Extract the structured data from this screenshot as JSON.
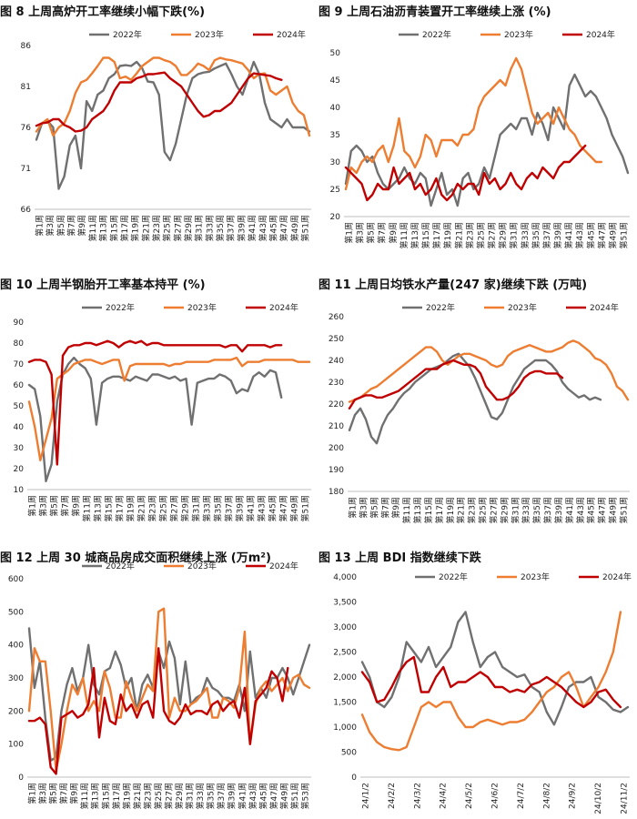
{
  "series_colors": {
    "2022": "#707070",
    "2023": "#ED7D31",
    "2024": "#C00000"
  },
  "week_labels": [
    "第1周",
    "第3周",
    "第5周",
    "第7周",
    "第9周",
    "第11周",
    "第13周",
    "第15周",
    "第17周",
    "第19周",
    "第21周",
    "第23周",
    "第25周",
    "第27周",
    "第29周",
    "第31周",
    "第33周",
    "第35周",
    "第37周",
    "第39周",
    "第41周",
    "第43周",
    "第45周",
    "第47周",
    "第49周",
    "第51周"
  ],
  "week_labels_53": [
    "第1周",
    "第3周",
    "第5周",
    "第7周",
    "第9周",
    "第11周",
    "第13周",
    "第15周",
    "第17周",
    "第19周",
    "第21周",
    "第23周",
    "第25周",
    "第27周",
    "第29周",
    "第31周",
    "第33周",
    "第35周",
    "第37周",
    "第39周",
    "第41周",
    "第43周",
    "第45周",
    "第47周",
    "第49周",
    "第51周",
    "第53周"
  ],
  "chart_data": [
    {
      "id": "c8",
      "type": "line",
      "title": "图 8  上周高炉开工率继续小幅下跌(%)",
      "ylim": [
        66,
        86
      ],
      "yticks": [
        "66",
        "71",
        "76",
        "81",
        "86"
      ],
      "ytick_values": [
        66,
        71,
        76,
        81,
        86
      ],
      "xlabels_key": "week_labels",
      "legend_names": [
        "2022年",
        "2023年",
        "2024年"
      ],
      "series": [
        {
          "name": "2022年",
          "values": [
            74.5,
            76.5,
            76.8,
            76,
            68.5,
            70,
            73.8,
            75,
            71,
            79.2,
            78,
            80,
            80.5,
            82,
            82.5,
            83.5,
            83.6,
            83.5,
            84,
            83.2,
            81.6,
            81.5,
            80,
            73,
            72,
            74,
            77,
            80,
            82,
            82.5,
            82.7,
            82.8,
            83.2,
            83.5,
            83.8,
            82.5,
            81,
            80,
            82,
            84,
            82.5,
            79,
            77,
            76.5,
            76,
            77,
            76,
            76,
            76,
            75.5
          ]
        },
        {
          "name": "2023年",
          "values": [
            75.5,
            76.5,
            77,
            75,
            76,
            76.5,
            78,
            80.2,
            81.5,
            81.8,
            82.6,
            83.5,
            84.5,
            84.5,
            84,
            82,
            82.2,
            81.8,
            82.6,
            83.5,
            84,
            84.5,
            84.5,
            84.2,
            84,
            83.5,
            82.4,
            82.4,
            83,
            83.8,
            83.5,
            83,
            84.2,
            84.5,
            84.3,
            84.2,
            84,
            83.8,
            83,
            82,
            82.5,
            82.6,
            80.5,
            80,
            80.5,
            81,
            79,
            78,
            77.5,
            75
          ]
        },
        {
          "name": "2024年",
          "values": [
            76.2,
            76.5,
            76.6,
            77,
            77,
            76.3,
            76,
            75.5,
            75.6,
            76,
            77,
            77.5,
            78,
            79,
            80.5,
            81.5,
            81.5,
            81.5,
            82,
            82.2,
            82.5,
            82.5,
            82.6,
            82.7,
            82,
            81.5,
            81,
            80,
            79,
            78,
            77.3,
            77.5,
            78,
            78,
            78.5,
            79,
            80,
            81,
            82,
            82.6,
            82.5,
            82.4,
            82.3,
            82,
            81.8
          ]
        }
      ]
    },
    {
      "id": "c9",
      "type": "line",
      "title": "图 9  上周石油沥青装置开工率继续上涨 (%)",
      "ylim": [
        20,
        50
      ],
      "yticks": [
        "20",
        "25",
        "30",
        "35",
        "40",
        "45",
        "50"
      ],
      "ytick_values": [
        20,
        25,
        30,
        35,
        40,
        45,
        50
      ],
      "xlabels_key": "week_labels",
      "legend_names": [
        "2022年",
        "2023年",
        "2024年"
      ],
      "series": [
        {
          "name": "2022年",
          "values": [
            26,
            32,
            33,
            32,
            30,
            31,
            28,
            26,
            25,
            26,
            27,
            29,
            27,
            26,
            28,
            27,
            22,
            25,
            28,
            24,
            25,
            22,
            27,
            28,
            25,
            26,
            29,
            27,
            31,
            35,
            36,
            37,
            36,
            38,
            38,
            35,
            39,
            37,
            34,
            40,
            38,
            36,
            44,
            46,
            44,
            42,
            43,
            42,
            40,
            38,
            35,
            33,
            31,
            28
          ]
        },
        {
          "name": "2023年",
          "values": [
            25,
            29,
            28,
            30,
            31,
            30,
            32,
            33,
            30,
            33,
            38,
            32,
            31,
            29,
            31,
            35,
            34,
            31,
            34,
            34,
            34,
            33,
            35,
            35,
            36,
            40,
            42,
            43,
            44,
            45,
            44,
            47,
            49,
            47,
            43,
            39,
            37,
            38,
            39,
            37,
            40,
            38,
            36,
            35,
            33,
            32,
            31,
            30,
            30
          ]
        },
        {
          "name": "2024年",
          "values": [
            29,
            28,
            27,
            26,
            23,
            24,
            26,
            25,
            25,
            29,
            26,
            27,
            28,
            25,
            26,
            24,
            25,
            27,
            24,
            23,
            24,
            26,
            25,
            26,
            26,
            24,
            28,
            26,
            27,
            25,
            26,
            28,
            26,
            25,
            27,
            28,
            27,
            29,
            28,
            27,
            29,
            30,
            30,
            31,
            32,
            33
          ]
        }
      ]
    },
    {
      "id": "c10",
      "type": "line",
      "title": "图 10   上周半钢胎开工率基本持平 (%)",
      "ylim": [
        10,
        90
      ],
      "yticks": [
        "10",
        "20",
        "30",
        "40",
        "50",
        "60",
        "70",
        "80",
        "90"
      ],
      "ytick_values": [
        10,
        20,
        30,
        40,
        50,
        60,
        70,
        80,
        90
      ],
      "xlabels_key": "week_labels",
      "legend_names": [
        "2022年",
        "2023年",
        "2024年"
      ],
      "series": [
        {
          "name": "2022年",
          "values": [
            60,
            58,
            45,
            14,
            22,
            52,
            65,
            70,
            73,
            70,
            68,
            63,
            41,
            61,
            63,
            64,
            64,
            63,
            62,
            64,
            63,
            62,
            65,
            65,
            64,
            63,
            64,
            62,
            63,
            41,
            61,
            62,
            63,
            63,
            65,
            64,
            62,
            56,
            58,
            57,
            64,
            66,
            64,
            67,
            66,
            54
          ]
        },
        {
          "name": "2023年",
          "values": [
            52,
            40,
            24,
            34,
            44,
            63,
            65,
            67,
            70,
            71,
            72,
            72,
            71,
            70,
            71,
            72,
            72,
            62,
            69,
            70,
            70,
            70,
            70,
            70,
            70,
            69,
            70,
            70,
            71,
            71,
            71,
            71,
            71,
            72,
            72,
            72,
            72,
            73,
            69,
            71,
            71,
            71,
            72,
            72,
            72,
            72,
            72,
            72,
            71,
            71,
            71
          ]
        },
        {
          "name": "2024年",
          "values": [
            71,
            72,
            72,
            71,
            65,
            22,
            74,
            78,
            79,
            79,
            80,
            80,
            79,
            80,
            81,
            80,
            78,
            80,
            81,
            80,
            81,
            79,
            80,
            80,
            79,
            79,
            79,
            79,
            79,
            79,
            79,
            79,
            79,
            79,
            79,
            78,
            79,
            79,
            76,
            79,
            79,
            79,
            79,
            78,
            79,
            79
          ]
        }
      ]
    },
    {
      "id": "c11",
      "type": "line",
      "title": "图 11  上周日均铁水产量(247 家)继续下跌 (万吨)",
      "ylim": [
        180,
        260
      ],
      "yticks": [
        "180",
        "190",
        "200",
        "210",
        "220",
        "230",
        "240",
        "250",
        "260"
      ],
      "ytick_values": [
        180,
        190,
        200,
        210,
        220,
        230,
        240,
        250,
        260
      ],
      "xlabels_key": "week_labels",
      "legend_names": [
        "2022年",
        "2023年",
        "2024年"
      ],
      "series": [
        {
          "name": "2022年",
          "values": [
            208,
            215,
            218,
            213,
            205,
            202,
            210,
            215,
            218,
            222,
            225,
            227,
            230,
            232,
            234,
            236,
            237,
            238,
            240,
            242,
            243,
            240,
            237,
            232,
            226,
            220,
            214,
            213,
            216,
            222,
            228,
            232,
            236,
            238,
            240,
            240,
            240,
            238,
            235,
            230,
            227,
            225,
            223,
            224,
            222,
            223,
            222
          ]
        },
        {
          "name": "2023年",
          "values": [
            221,
            222,
            223,
            225,
            227,
            228,
            230,
            232,
            234,
            236,
            238,
            240,
            242,
            244,
            246,
            246,
            244,
            240,
            238,
            240,
            242,
            243,
            243,
            242,
            241,
            240,
            238,
            237,
            238,
            242,
            244,
            245,
            246,
            247,
            246,
            245,
            244,
            244,
            245,
            246,
            248,
            249,
            248,
            246,
            244,
            241,
            240,
            238,
            234,
            228,
            226,
            222
          ]
        },
        {
          "name": "2024年",
          "values": [
            218,
            222,
            223,
            224,
            224,
            223,
            223,
            224,
            225,
            226,
            228,
            230,
            232,
            234,
            236,
            236,
            236,
            238,
            239,
            240,
            239,
            238,
            238,
            237,
            234,
            228,
            225,
            222,
            222,
            223,
            225,
            228,
            232,
            234,
            235,
            235,
            234,
            234,
            234,
            232
          ]
        }
      ]
    },
    {
      "id": "c12",
      "type": "line",
      "title": "图 12  上周 30 城商品房成交面积继续上涨 (万m²)",
      "ylim": [
        0,
        600
      ],
      "yticks": [
        "0",
        "100",
        "200",
        "300",
        "400",
        "500",
        "600"
      ],
      "ytick_values": [
        0,
        100,
        200,
        300,
        400,
        500,
        600
      ],
      "xlabels_key": "week_labels_53",
      "legend_names": [
        "2022年",
        "2023年",
        "2024年"
      ],
      "series": [
        {
          "name": "2022年",
          "values": [
            450,
            270,
            350,
            180,
            50,
            60,
            200,
            280,
            330,
            260,
            300,
            400,
            280,
            250,
            320,
            330,
            380,
            340,
            270,
            300,
            200,
            280,
            310,
            270,
            380,
            330,
            410,
            360,
            220,
            350,
            220,
            240,
            250,
            300,
            270,
            260,
            240,
            240,
            230,
            280,
            200,
            380,
            240,
            270,
            240,
            300,
            300,
            330,
            300,
            250,
            300,
            350,
            400
          ]
        },
        {
          "name": "2023年",
          "values": [
            200,
            390,
            350,
            350,
            200,
            20,
            100,
            200,
            280,
            250,
            300,
            200,
            230,
            200,
            320,
            270,
            180,
            180,
            290,
            240,
            200,
            240,
            280,
            260,
            500,
            510,
            180,
            240,
            200,
            200,
            220,
            230,
            250,
            270,
            180,
            180,
            240,
            230,
            210,
            270,
            440,
            100,
            220,
            270,
            290,
            260,
            280,
            300,
            260,
            300,
            310,
            280,
            270
          ]
        },
        {
          "name": "2023年-end",
          "values": []
        },
        {
          "name": "2024年",
          "values": [
            170,
            170,
            180,
            160,
            30,
            10,
            180,
            190,
            200,
            180,
            190,
            220,
            330,
            120,
            240,
            170,
            160,
            250,
            200,
            220,
            180,
            220,
            230,
            180,
            390,
            200,
            170,
            160,
            180,
            220,
            190,
            200,
            200,
            190,
            220,
            230,
            200,
            220,
            230,
            180,
            270,
            100,
            230,
            250,
            270,
            320,
            300,
            230,
            330
          ]
        }
      ]
    },
    {
      "id": "c13",
      "type": "line",
      "title": "图 13  上周 BDI 指数继续下跌",
      "ylim": [
        0,
        4000
      ],
      "yticks": [
        "0",
        "500",
        "1,000",
        "1,500",
        "2,000",
        "2,500",
        "3,000",
        "3,500",
        "4,000"
      ],
      "ytick_values": [
        0,
        500,
        1000,
        1500,
        2000,
        2500,
        3000,
        3500,
        4000
      ],
      "xlabels": [
        "24/1/2",
        "24/2/2",
        "24/3/2",
        "24/4/2",
        "24/5/2",
        "24/6/2",
        "24/7/2",
        "24/8/2",
        "24/9/2",
        "24/10/2",
        "24/11/2"
      ],
      "legend_names": [
        "2022年",
        "2023年",
        "2024年"
      ],
      "series": [
        {
          "name": "2022年",
          "values": [
            2300,
            2000,
            1500,
            1400,
            1600,
            2000,
            2700,
            2500,
            2300,
            2600,
            2200,
            2400,
            2600,
            3100,
            3300,
            2700,
            2200,
            2400,
            2500,
            2200,
            2100,
            2000,
            2050,
            1800,
            1700,
            1300,
            1050,
            1400,
            1800,
            1900,
            1900,
            2000,
            1600,
            1500,
            1350,
            1300,
            1400
          ]
        },
        {
          "name": "2023年",
          "values": [
            1250,
            900,
            700,
            600,
            560,
            540,
            600,
            1000,
            1400,
            1500,
            1400,
            1500,
            1500,
            1200,
            1000,
            1000,
            1100,
            1150,
            1100,
            1050,
            1100,
            1100,
            1150,
            1300,
            1500,
            1700,
            1800,
            2000,
            2100,
            1800,
            1400,
            1600,
            1800,
            2100,
            2500,
            3300
          ]
        },
        {
          "name": "2024年",
          "values": [
            2100,
            1900,
            1500,
            1550,
            1800,
            2100,
            2300,
            2400,
            1700,
            1700,
            2000,
            2200,
            1800,
            1900,
            1900,
            2000,
            2100,
            2000,
            1800,
            1800,
            1700,
            1750,
            1700,
            1850,
            1900,
            2000,
            1900,
            1800,
            1650,
            1500,
            1400,
            1500,
            1700,
            1750,
            1550,
            1400
          ]
        }
      ]
    }
  ]
}
